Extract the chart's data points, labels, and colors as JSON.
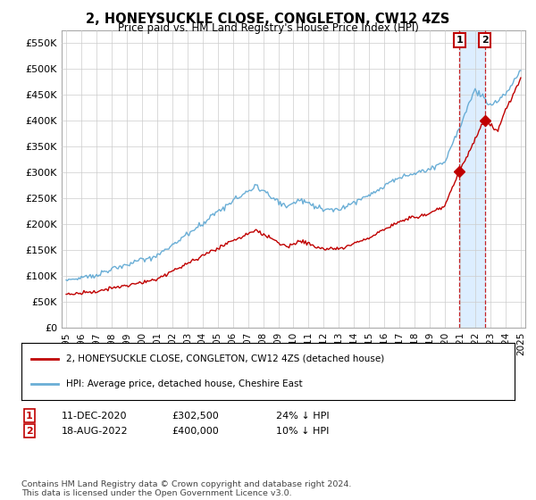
{
  "title": "2, HONEYSUCKLE CLOSE, CONGLETON, CW12 4ZS",
  "subtitle": "Price paid vs. HM Land Registry's House Price Index (HPI)",
  "ylim": [
    0,
    575000
  ],
  "yticks": [
    0,
    50000,
    100000,
    150000,
    200000,
    250000,
    300000,
    350000,
    400000,
    450000,
    500000,
    550000
  ],
  "ytick_labels": [
    "£0",
    "£50K",
    "£100K",
    "£150K",
    "£200K",
    "£250K",
    "£300K",
    "£350K",
    "£400K",
    "£450K",
    "£500K",
    "£550K"
  ],
  "hpi_color": "#6aaed6",
  "price_color": "#c00000",
  "sale1_x": 2020.958,
  "sale1_price": 302500,
  "sale1_date_str": "11-DEC-2020",
  "sale1_pct": "24% ↓ HPI",
  "sale2_x": 2022.625,
  "sale2_price": 400000,
  "sale2_date_str": "18-AUG-2022",
  "sale2_pct": "10% ↓ HPI",
  "legend_label1": "2, HONEYSUCKLE CLOSE, CONGLETON, CW12 4ZS (detached house)",
  "legend_label2": "HPI: Average price, detached house, Cheshire East",
  "footer": "Contains HM Land Registry data © Crown copyright and database right 2024.\nThis data is licensed under the Open Government Licence v3.0.",
  "background_color": "#ffffff",
  "grid_color": "#cccccc",
  "shade_color": "#ddeeff"
}
